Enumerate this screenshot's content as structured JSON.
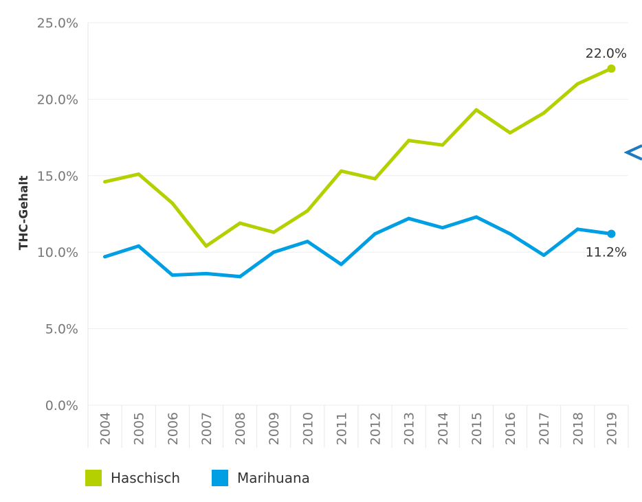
{
  "chart_data": {
    "type": "line",
    "title": "",
    "xlabel": "",
    "ylabel": "THC-Gehalt",
    "ylim": [
      0,
      25
    ],
    "y_ticks": [
      "0.0%",
      "5.0%",
      "10.0%",
      "15.0%",
      "20.0%",
      "25.0%"
    ],
    "y_tick_values": [
      0,
      5,
      10,
      15,
      20,
      25
    ],
    "categories": [
      "2004",
      "2005",
      "2006",
      "2007",
      "2008",
      "2009",
      "2010",
      "2011",
      "2012",
      "2013",
      "2014",
      "2015",
      "2016",
      "2017",
      "2018",
      "2019"
    ],
    "grid": true,
    "legend_position": "bottom-left",
    "series": [
      {
        "name": "Haschisch",
        "color": "#b5d000",
        "values": [
          14.6,
          15.1,
          13.2,
          10.4,
          11.9,
          11.3,
          12.7,
          15.3,
          14.8,
          17.3,
          17.0,
          19.3,
          17.8,
          19.1,
          21.0,
          22.0
        ],
        "end_label": "22.0%"
      },
      {
        "name": "Marihuana",
        "color": "#009fe3",
        "values": [
          9.7,
          10.4,
          8.5,
          8.6,
          8.4,
          10.0,
          10.7,
          9.2,
          11.2,
          12.2,
          11.6,
          12.3,
          11.2,
          9.8,
          11.5,
          11.2
        ],
        "end_label": "11.2%"
      }
    ]
  },
  "nav": {
    "arrow_icon": "chevron-left-icon",
    "arrow_color": "#1f7bc1"
  }
}
